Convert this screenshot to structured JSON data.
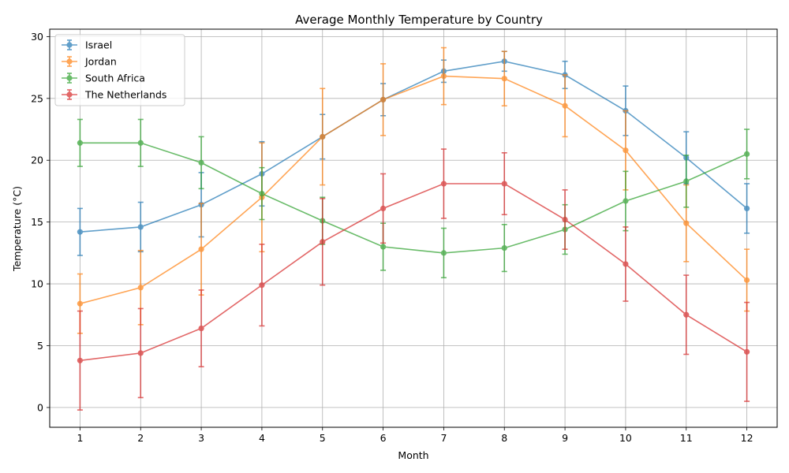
{
  "chart_data": {
    "type": "line",
    "title": "Average Monthly Temperature by Country",
    "xlabel": "Month",
    "ylabel": "Temperature (°C)",
    "x": [
      1,
      2,
      3,
      4,
      5,
      6,
      7,
      8,
      9,
      10,
      11,
      12
    ],
    "xlim": [
      0.5,
      12.5
    ],
    "ylim": [
      -1.6,
      30.6
    ],
    "yticks": [
      0,
      5,
      10,
      15,
      20,
      25,
      30
    ],
    "grid": true,
    "legend_position": "upper-left",
    "error_bars": true,
    "series": [
      {
        "name": "Israel",
        "color": "#1f77b4",
        "values": [
          14.2,
          14.6,
          16.4,
          18.9,
          21.9,
          24.9,
          27.2,
          28.0,
          26.9,
          24.0,
          20.2,
          16.1
        ],
        "errors": [
          1.9,
          2.0,
          2.6,
          2.6,
          1.8,
          1.3,
          0.9,
          0.8,
          1.1,
          2.0,
          2.1,
          2.0
        ]
      },
      {
        "name": "Jordan",
        "color": "#ff7f0e",
        "values": [
          8.4,
          9.7,
          12.8,
          17.0,
          21.9,
          24.9,
          26.8,
          26.6,
          24.4,
          20.8,
          14.9,
          10.3
        ],
        "errors": [
          2.4,
          3.0,
          3.7,
          4.4,
          3.9,
          2.9,
          2.3,
          2.2,
          2.5,
          3.2,
          3.1,
          2.5
        ]
      },
      {
        "name": "South Africa",
        "color": "#2ca02c",
        "values": [
          21.4,
          21.4,
          19.8,
          17.3,
          15.1,
          13.0,
          12.5,
          12.9,
          14.4,
          16.7,
          18.3,
          20.5
        ],
        "errors": [
          1.9,
          1.9,
          2.1,
          2.1,
          1.9,
          1.9,
          2.0,
          1.9,
          2.0,
          2.4,
          2.1,
          2.0
        ]
      },
      {
        "name": "The Netherlands",
        "color": "#d62728",
        "values": [
          3.8,
          4.4,
          6.4,
          9.9,
          13.4,
          16.1,
          18.1,
          18.1,
          15.2,
          11.6,
          7.5,
          4.5
        ],
        "errors": [
          4.0,
          3.6,
          3.1,
          3.3,
          3.5,
          2.8,
          2.8,
          2.5,
          2.4,
          3.0,
          3.2,
          4.0
        ]
      }
    ]
  }
}
